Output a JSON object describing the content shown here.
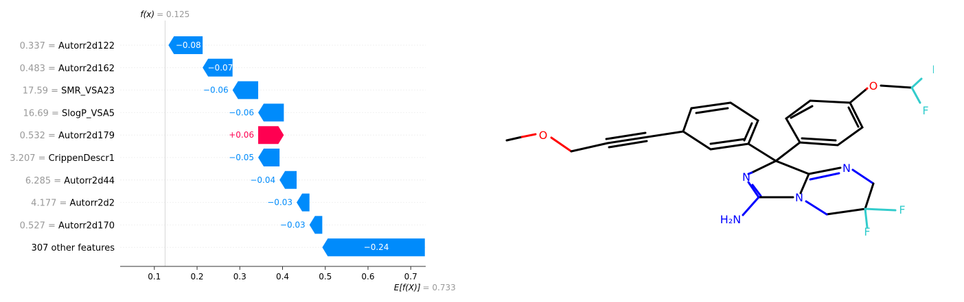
{
  "chart_data": {
    "type": "waterfall",
    "fx_label": "f(x)",
    "fx_value_text": "= 0.125",
    "fx": 0.125,
    "efx_label": "E[f(X)]",
    "efx_value_text": "= 0.733",
    "base_value": 0.733,
    "xlim": [
      0.02,
      0.735
    ],
    "xticks": [
      0.1,
      0.2,
      0.3,
      0.4,
      0.5,
      0.6,
      0.7
    ],
    "xtick_labels": [
      "0.1",
      "0.2",
      "0.3",
      "0.4",
      "0.5",
      "0.6",
      "0.7"
    ],
    "features": [
      {
        "value": "0.337",
        "name": "Autorr2d122",
        "contribution": -0.08,
        "label": "−0.08"
      },
      {
        "value": "0.483",
        "name": "Autorr2d162",
        "contribution": -0.07,
        "label": "−0.07"
      },
      {
        "value": "17.59",
        "name": "SMR_VSA23",
        "contribution": -0.06,
        "label": "−0.06"
      },
      {
        "value": "16.69",
        "name": "SlogP_VSA5",
        "contribution": -0.06,
        "label": "−0.06"
      },
      {
        "value": "0.532",
        "name": "Autorr2d179",
        "contribution": 0.06,
        "label": "+0.06"
      },
      {
        "value": "3.207",
        "name": "CrippenDescr1",
        "contribution": -0.05,
        "label": "−0.05"
      },
      {
        "value": "6.285",
        "name": "Autorr2d44",
        "contribution": -0.04,
        "label": "−0.04"
      },
      {
        "value": "4.177",
        "name": "Autorr2d2",
        "contribution": -0.03,
        "label": "−0.03"
      },
      {
        "value": "0.527",
        "name": "Autorr2d170",
        "contribution": -0.03,
        "label": "−0.03"
      },
      {
        "value": "",
        "name": "307 other features",
        "contribution": -0.24,
        "label": "−0.24"
      }
    ],
    "colors": {
      "negative": "#008bfb",
      "positive": "#ff0051"
    }
  },
  "molecule": {
    "atom_labels": [
      "O",
      "O",
      "F",
      "F",
      "N",
      "N",
      "N",
      "F",
      "F",
      "H₂N"
    ]
  }
}
